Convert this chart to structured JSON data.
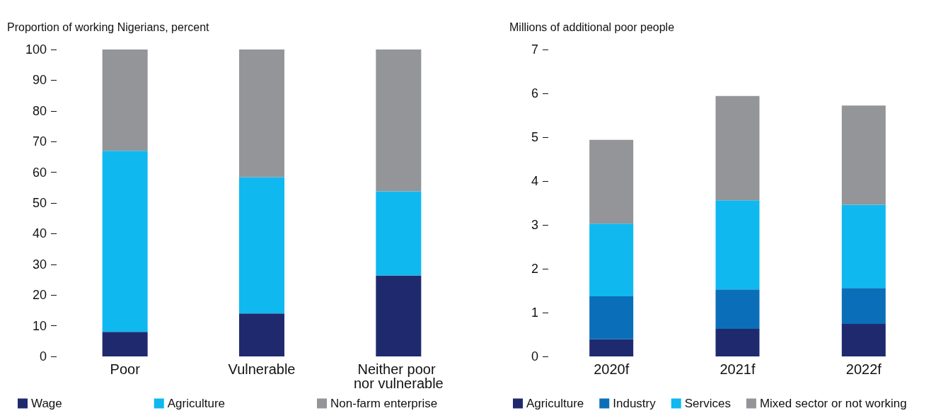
{
  "chart_data": [
    {
      "type": "bar",
      "stacked": true,
      "ylabel": "Proportion of working Nigerians, percent",
      "categories": [
        "Poor",
        "Vulnerable",
        "Neither poor nor vulnerable"
      ],
      "series": [
        {
          "name": "Wage",
          "color": "#1f2a6e",
          "values": [
            8,
            14,
            26.4
          ]
        },
        {
          "name": "Agriculture",
          "color": "#10b8f0",
          "values": [
            59,
            44.4,
            27.4
          ]
        },
        {
          "name": "Non-farm enterprise",
          "color": "#939598",
          "values": [
            33,
            41.6,
            46.2
          ]
        }
      ],
      "ylim": [
        0,
        100
      ],
      "yticks": [
        0,
        10,
        20,
        30,
        40,
        50,
        60,
        70,
        80,
        90,
        100
      ],
      "grid": false,
      "legend": "bottom"
    },
    {
      "type": "bar",
      "stacked": true,
      "ylabel": "Millions of additional poor people",
      "categories": [
        "2020f",
        "2021f",
        "2022f"
      ],
      "series": [
        {
          "name": "Agriculture",
          "color": "#1f2a6e",
          "values": [
            0.39,
            0.63,
            0.74
          ]
        },
        {
          "name": "Industry",
          "color": "#0a6fb8",
          "values": [
            0.98,
            0.9,
            0.82
          ]
        },
        {
          "name": "Services",
          "color": "#10b8f0",
          "values": [
            1.66,
            2.03,
            1.9
          ]
        },
        {
          "name": "Mixed sector or not working",
          "color": "#939598",
          "values": [
            1.91,
            2.38,
            2.26
          ]
        }
      ],
      "ylim": [
        0,
        7
      ],
      "yticks": [
        0,
        1,
        2,
        3,
        4,
        5,
        6,
        7
      ],
      "grid": false,
      "legend": "bottom"
    }
  ]
}
